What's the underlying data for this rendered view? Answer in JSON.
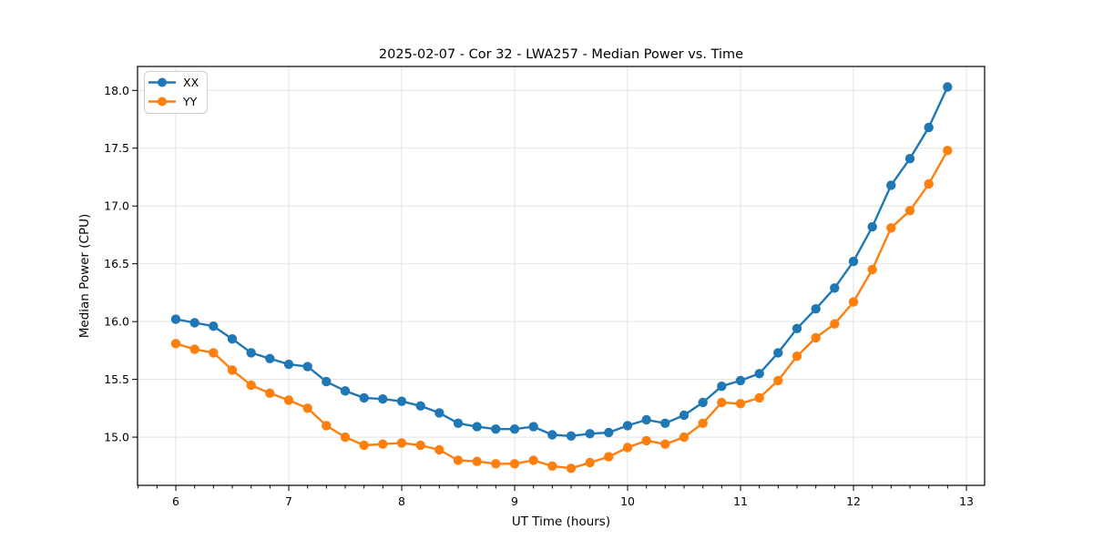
{
  "chart_data": {
    "type": "line",
    "title": "2025-02-07 - Cor 32 - LWA257 - Median Power vs. Time",
    "xlabel": "UT Time (hours)",
    "ylabel": "Median Power (CPU)",
    "xlim": [
      5.661,
      13.161
    ],
    "ylim": [
      14.583,
      18.207
    ],
    "x_ticks": [
      6,
      7,
      8,
      9,
      10,
      11,
      12,
      13
    ],
    "y_ticks": [
      15.0,
      15.5,
      16.0,
      16.5,
      17.0,
      17.5,
      18.0
    ],
    "x_minor_tick_interval": 0.1667,
    "grid": true,
    "legend_position": "upper left",
    "x": [
      6.0,
      6.167,
      6.333,
      6.5,
      6.667,
      6.833,
      7.0,
      7.167,
      7.333,
      7.5,
      7.667,
      7.833,
      8.0,
      8.167,
      8.333,
      8.5,
      8.667,
      8.833,
      9.0,
      9.167,
      9.333,
      9.5,
      9.667,
      9.833,
      10.0,
      10.167,
      10.333,
      10.5,
      10.667,
      10.833,
      11.0,
      11.167,
      11.333,
      11.5,
      11.667,
      11.833,
      12.0,
      12.167,
      12.333,
      12.5,
      12.667,
      12.833
    ],
    "series": [
      {
        "name": "XX",
        "color": "#1f77b4",
        "marker": "circle",
        "values": [
          16.02,
          15.99,
          15.96,
          15.85,
          15.73,
          15.68,
          15.63,
          15.61,
          15.48,
          15.4,
          15.34,
          15.33,
          15.31,
          15.27,
          15.21,
          15.12,
          15.09,
          15.07,
          15.07,
          15.09,
          15.02,
          15.01,
          15.03,
          15.04,
          15.1,
          15.15,
          15.12,
          15.19,
          15.3,
          15.44,
          15.49,
          15.55,
          15.73,
          15.94,
          16.11,
          16.29,
          16.52,
          16.82,
          17.18,
          17.41,
          17.68,
          18.03
        ]
      },
      {
        "name": "YY",
        "color": "#ff7f0e",
        "marker": "circle",
        "values": [
          15.81,
          15.76,
          15.73,
          15.58,
          15.45,
          15.38,
          15.32,
          15.25,
          15.1,
          15.0,
          14.93,
          14.94,
          14.95,
          14.93,
          14.89,
          14.8,
          14.79,
          14.77,
          14.77,
          14.8,
          14.75,
          14.73,
          14.78,
          14.83,
          14.91,
          14.97,
          14.94,
          15.0,
          15.12,
          15.3,
          15.29,
          15.34,
          15.49,
          15.7,
          15.86,
          15.98,
          16.17,
          16.45,
          16.81,
          16.96,
          17.19,
          17.48
        ]
      }
    ]
  }
}
